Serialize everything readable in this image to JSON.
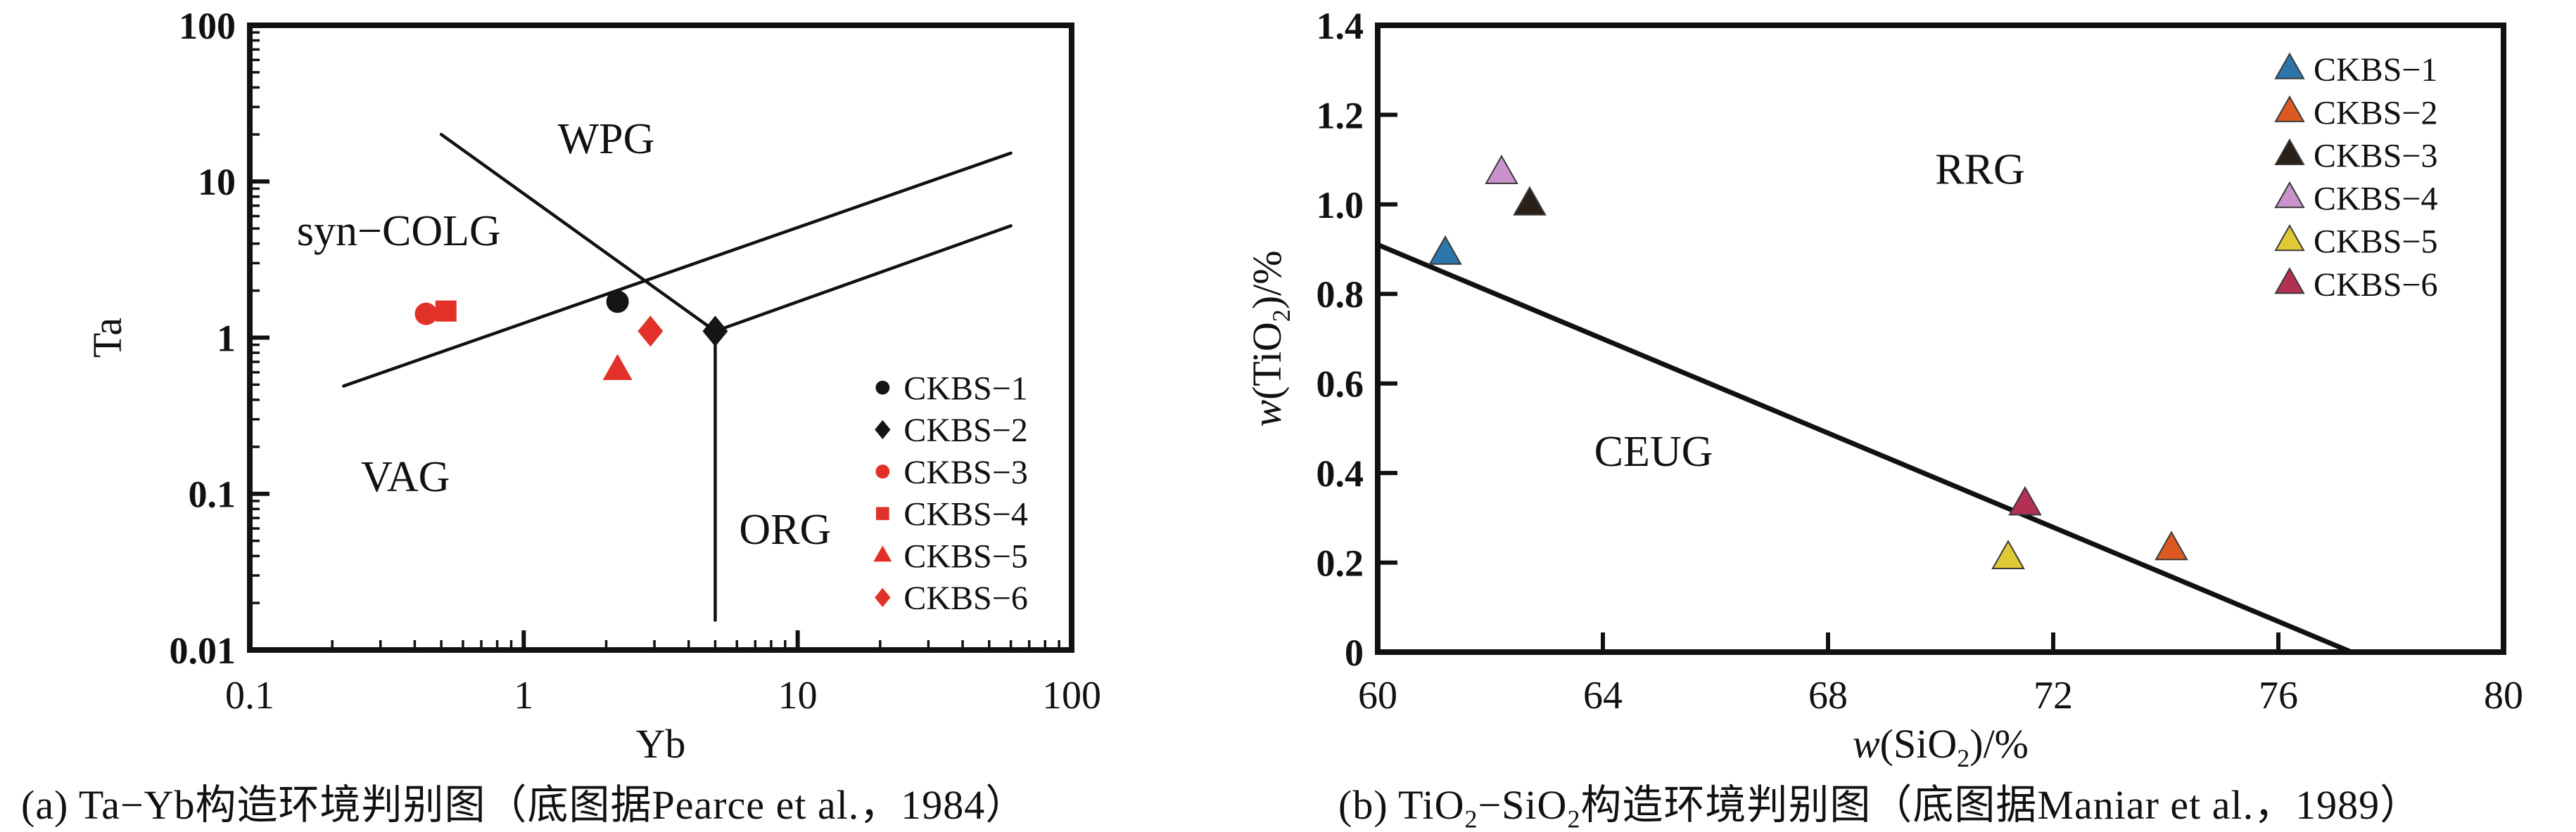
{
  "figure": {
    "background": "#ffffff",
    "captions": {
      "a": [
        {
          "t": "(a) Ta−Yb构造环境判别图（底图据Pearce et al.，1984）"
        }
      ],
      "b": [
        {
          "t": "(b) TiO"
        },
        {
          "sub": "2"
        },
        {
          "t": "−SiO"
        },
        {
          "sub": "2"
        },
        {
          "t": "构造环境判别图（底图据Maniar et al.，1989）"
        }
      ]
    },
    "colors": {
      "axis": "#111111",
      "red_marker": "#e23128",
      "black_marker": "#151515",
      "blue": "#2e75ac",
      "orange": "#dc5a22",
      "dark": "#292019",
      "orchid": "#c992cb",
      "yellow": "#dfc937",
      "crimson": "#b13054"
    }
  },
  "chart_data": [
    {
      "id": "a",
      "type": "scatter",
      "title": "",
      "xlabel_parts": [
        {
          "t": "Yb"
        }
      ],
      "ylabel_parts": [
        {
          "t": "Ta"
        }
      ],
      "xscale": "log",
      "yscale": "log",
      "xlim": [
        0.1,
        100
      ],
      "ylim": [
        0.01,
        100
      ],
      "grid": false,
      "xticks": [
        {
          "v": 0.1,
          "label": "0.1"
        },
        {
          "v": 1,
          "label": "1"
        },
        {
          "v": 10,
          "label": "10"
        },
        {
          "v": 100,
          "label": "100"
        }
      ],
      "yticks": [
        {
          "v": 0.01,
          "label": "0.01"
        },
        {
          "v": 0.1,
          "label": "0.1"
        },
        {
          "v": 1,
          "label": "1"
        },
        {
          "v": 10,
          "label": "10"
        },
        {
          "v": 100,
          "label": "100"
        }
      ],
      "minor_ticks": true,
      "series": [
        {
          "name": "CKBS−1",
          "marker": "circle",
          "color": "#151515",
          "points": [
            [
              2.2,
              1.7
            ]
          ]
        },
        {
          "name": "CKBS−2",
          "marker": "diamond",
          "color": "#151515",
          "points": [
            [
              5.0,
              1.1
            ]
          ]
        },
        {
          "name": "CKBS−3",
          "marker": "circle",
          "color": "#e23128",
          "points": [
            [
              0.44,
              1.42
            ]
          ]
        },
        {
          "name": "CKBS−4",
          "marker": "square",
          "color": "#e23128",
          "points": [
            [
              0.52,
              1.48
            ]
          ]
        },
        {
          "name": "CKBS−5",
          "marker": "triangle",
          "color": "#e23128",
          "points": [
            [
              2.2,
              0.62
            ]
          ]
        },
        {
          "name": "CKBS−6",
          "marker": "diamond",
          "color": "#e23128",
          "points": [
            [
              2.9,
              1.1
            ]
          ]
        }
      ],
      "boundary_lines": [
        {
          "name": "syncolg-wpg",
          "points": [
            [
              0.5,
              20
            ],
            [
              5.0,
              1.1
            ]
          ]
        },
        {
          "name": "vag-syncolg",
          "points": [
            [
              0.22,
              0.49
            ],
            [
              60,
              15.2
            ]
          ]
        },
        {
          "name": "wpg-org",
          "points": [
            [
              5.0,
              1.1
            ],
            [
              60,
              5.2
            ]
          ]
        },
        {
          "name": "vag-org",
          "points": [
            [
              5.0,
              1.1
            ],
            [
              5.0,
              0.0155
            ]
          ]
        }
      ],
      "region_labels": [
        {
          "text": "syn−COLG",
          "x": 0.35,
          "y": 4.9
        },
        {
          "text": "WPG",
          "x": 2.0,
          "y": 19
        },
        {
          "text": "VAG",
          "x": 0.37,
          "y": 0.13
        },
        {
          "text": "ORG",
          "x": 9.0,
          "y": 0.06
        }
      ],
      "legend": {
        "position": "inside-bottom-right",
        "entries_from_series": true
      }
    },
    {
      "id": "b",
      "type": "scatter",
      "title": "",
      "xlabel_parts": [
        {
          "t": "w",
          "italic": true
        },
        {
          "t": "(SiO"
        },
        {
          "sub": "2"
        },
        {
          "t": ")/%"
        }
      ],
      "ylabel_parts": [
        {
          "t": "w",
          "italic": true
        },
        {
          "t": "(TiO"
        },
        {
          "sub": "2"
        },
        {
          "t": ")/%"
        }
      ],
      "xscale": "linear",
      "yscale": "linear",
      "xlim": [
        60,
        80
      ],
      "ylim": [
        0,
        1.4
      ],
      "grid": false,
      "xticks": [
        {
          "v": 60,
          "label": "60"
        },
        {
          "v": 64,
          "label": "64"
        },
        {
          "v": 68,
          "label": "68"
        },
        {
          "v": 72,
          "label": "72"
        },
        {
          "v": 76,
          "label": "76"
        },
        {
          "v": 80,
          "label": "80"
        }
      ],
      "yticks": [
        {
          "v": 0,
          "label": "0"
        },
        {
          "v": 0.2,
          "label": "0.2"
        },
        {
          "v": 0.4,
          "label": "0.4"
        },
        {
          "v": 0.6,
          "label": "0.6"
        },
        {
          "v": 0.8,
          "label": "0.8"
        },
        {
          "v": 1.0,
          "label": "1.0"
        },
        {
          "v": 1.2,
          "label": "1.2"
        },
        {
          "v": 1.4,
          "label": "1.4"
        }
      ],
      "minor_ticks": false,
      "series": [
        {
          "name": "CKBS−1",
          "marker": "triangle",
          "color": "#2e75ac",
          "points": [
            [
              61.2,
              0.89
            ]
          ]
        },
        {
          "name": "CKBS−2",
          "marker": "triangle",
          "color": "#dc5a22",
          "points": [
            [
              74.1,
              0.23
            ]
          ]
        },
        {
          "name": "CKBS−3",
          "marker": "triangle",
          "color": "#292019",
          "points": [
            [
              62.7,
              1.0
            ]
          ]
        },
        {
          "name": "CKBS−4",
          "marker": "triangle",
          "color": "#c992cb",
          "points": [
            [
              62.2,
              1.07
            ]
          ]
        },
        {
          "name": "CKBS−5",
          "marker": "triangle",
          "color": "#dfc937",
          "points": [
            [
              71.2,
              0.21
            ]
          ]
        },
        {
          "name": "CKBS−6",
          "marker": "triangle",
          "color": "#b13054",
          "points": [
            [
              71.5,
              0.33
            ]
          ]
        }
      ],
      "boundary_lines": [
        {
          "name": "rrg-ceug",
          "points": [
            [
              60,
              0.91
            ],
            [
              77.3,
              0
            ]
          ]
        }
      ],
      "region_labels": [
        {
          "text": "RRG",
          "x": 70.7,
          "y": 1.08
        },
        {
          "text": "CEUG",
          "x": 64.9,
          "y": 0.45
        }
      ],
      "legend": {
        "position": "inside-top-right",
        "entries_from_series": true
      }
    }
  ]
}
